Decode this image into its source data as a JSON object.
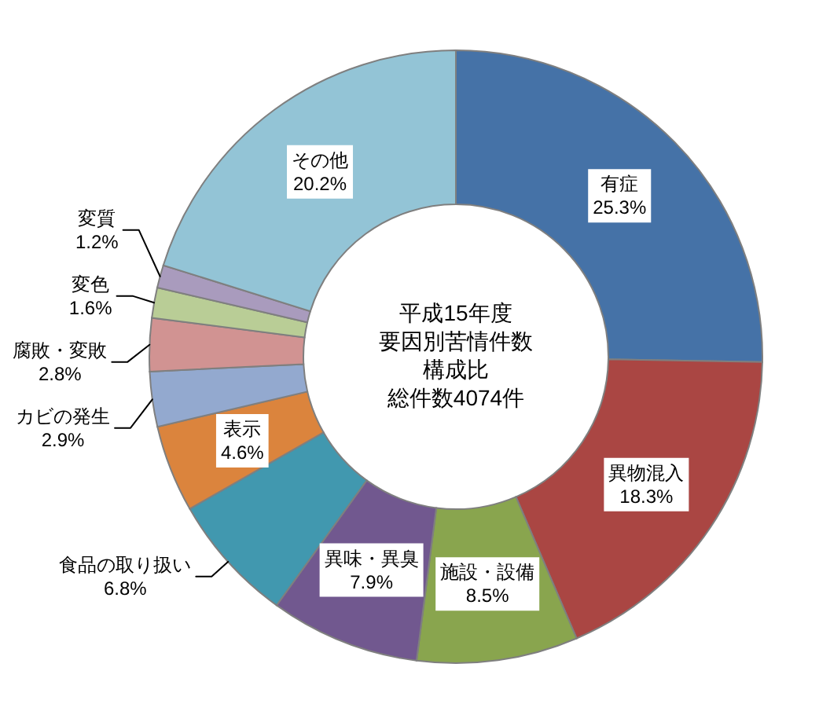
{
  "chart_data": {
    "type": "donut",
    "title": "平成15年度",
    "subtitle": "要因別苦情件数",
    "annotations": [
      "構成比",
      "総件数4074件"
    ],
    "categories": [
      "有症",
      "異物混入",
      "施設・設備",
      "異味・異臭",
      "食品の取り扱い",
      "表示",
      "カビの発生",
      "腐敗・変敗",
      "変色",
      "変質",
      "その他"
    ],
    "values": [
      25.3,
      18.3,
      8.5,
      7.9,
      6.8,
      4.6,
      2.9,
      2.8,
      1.6,
      1.2,
      20.2
    ],
    "colors": [
      "#4572a7",
      "#aa4643",
      "#89a54e",
      "#71588f",
      "#4198af",
      "#db843d",
      "#93a9cf",
      "#d19392",
      "#b9cd96",
      "#a99bbd",
      "#93c4d6"
    ],
    "value_labels": [
      "25.3%",
      "18.3%",
      "8.5%",
      "7.9%",
      "6.8%",
      "4.6%",
      "2.9%",
      "2.8%",
      "1.6%",
      "1.2%",
      "20.2%"
    ]
  }
}
